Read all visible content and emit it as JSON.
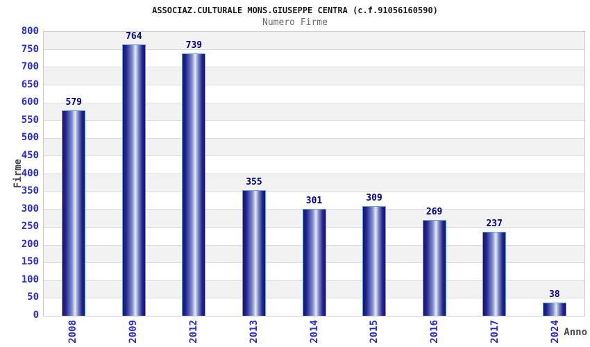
{
  "chart_data": {
    "type": "bar",
    "title": "ASSOCIAZ.CULTURALE MONS.GIUSEPPE CENTRA (c.f.91056160590)",
    "subtitle": "Numero Firme",
    "xlabel": "Anno",
    "ylabel": "Firme",
    "categories": [
      "2008",
      "2009",
      "2012",
      "2013",
      "2014",
      "2015",
      "2016",
      "2017",
      "2024"
    ],
    "values": [
      579,
      764,
      739,
      355,
      301,
      309,
      269,
      237,
      38
    ],
    "ylim": [
      0,
      800
    ],
    "ytick_step": 50,
    "legend": "none",
    "grid": "alternating-horizontal-bands",
    "colors": {
      "tick_label": "#2b2bd0",
      "value_label": "#000082",
      "bar_edge_dark": "#15156b",
      "bar_body": "#23238f",
      "bar_mid": "#7d8cc8",
      "bar_highlight": "#e6eaf7",
      "bar_border": "#63a0e3",
      "band_gray": "#f2f2f2",
      "band_white": "#ffffff",
      "plot_border": "#c9c9c9",
      "title_color": "#1a1a1a",
      "subtitle_color": "#6b6b6b",
      "axis_title_color": "#4a4a4a"
    }
  }
}
